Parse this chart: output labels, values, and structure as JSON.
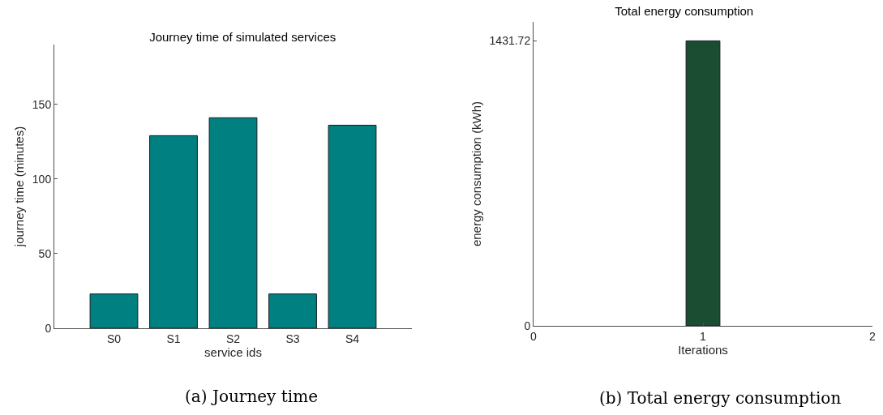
{
  "chart_data": [
    {
      "type": "bar",
      "title": "Journey time of simulated services",
      "xlabel": "service ids",
      "ylabel": "journey time (minutes)",
      "categories": [
        "S0",
        "S1",
        "S2",
        "S3",
        "S4"
      ],
      "values": [
        23,
        129,
        141,
        23,
        136
      ],
      "color": "#008080",
      "ylim": [
        0,
        190
      ],
      "yticks": [
        0,
        50,
        100,
        150
      ],
      "annotations": [
        "(a) Journey time"
      ]
    },
    {
      "type": "bar",
      "title": "Total energy consumption",
      "xlabel": "Iterations",
      "ylabel": "energy consumption (kWh)",
      "x": [
        1
      ],
      "values": [
        1431.72
      ],
      "color": "#1b4d33",
      "xlim": [
        0,
        2
      ],
      "xticks": [
        0,
        1,
        2
      ],
      "ylim": [
        0,
        1527
      ],
      "yticks": [
        0,
        1431.72
      ],
      "annotations": [
        "(b) Total energy consumption"
      ]
    }
  ]
}
